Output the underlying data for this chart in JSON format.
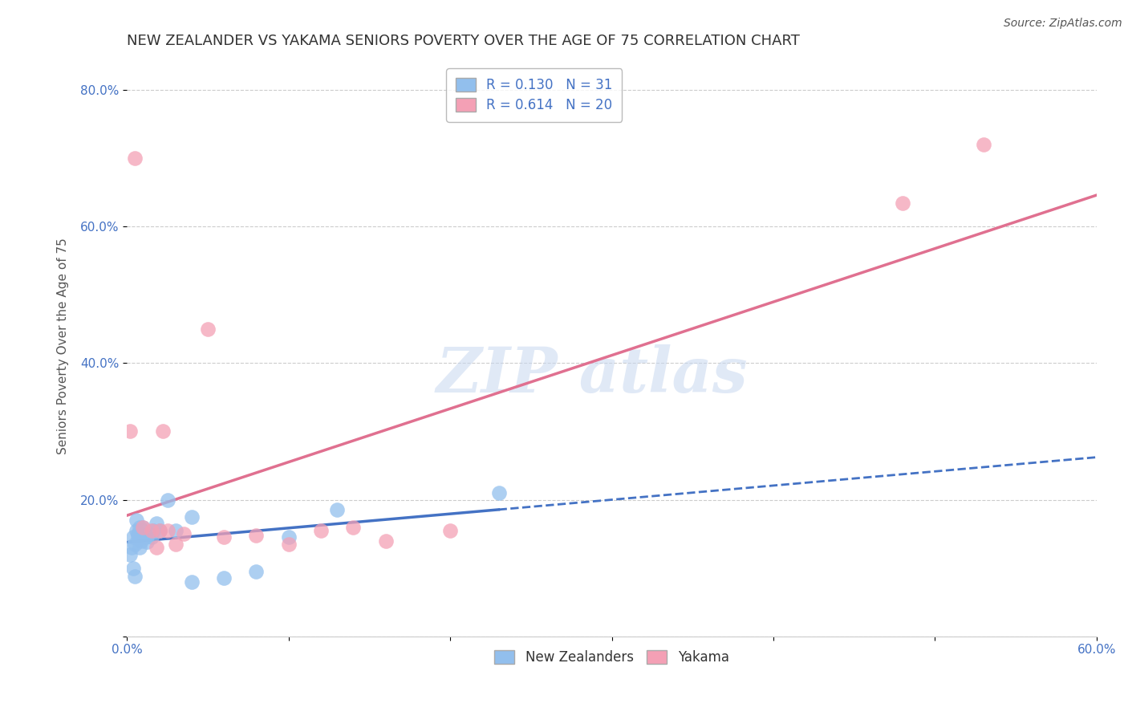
{
  "title": "NEW ZEALANDER VS YAKAMA SENIORS POVERTY OVER THE AGE OF 75 CORRELATION CHART",
  "source": "Source: ZipAtlas.com",
  "ylabel": "Seniors Poverty Over the Age of 75",
  "xlim": [
    0.0,
    0.6
  ],
  "ylim": [
    0.0,
    0.85
  ],
  "xticks": [
    0.0,
    0.1,
    0.2,
    0.3,
    0.4,
    0.5,
    0.6
  ],
  "yticks": [
    0.0,
    0.2,
    0.4,
    0.6,
    0.8
  ],
  "nz_R": 0.13,
  "nz_N": 31,
  "yakama_R": 0.614,
  "yakama_N": 20,
  "nz_color": "#92BFED",
  "yakama_color": "#F4A0B5",
  "nz_line_color": "#4472C4",
  "yakama_line_color": "#E07090",
  "background_color": "#ffffff",
  "grid_color": "#cccccc",
  "nz_legend_label": "New Zealanders",
  "yakama_legend_label": "Yakama",
  "title_fontsize": 13,
  "label_fontsize": 11,
  "tick_fontsize": 11,
  "legend_fontsize": 12,
  "nz_x": [
    0.002,
    0.003,
    0.004,
    0.004,
    0.005,
    0.005,
    0.006,
    0.006,
    0.007,
    0.007,
    0.008,
    0.008,
    0.009,
    0.01,
    0.01,
    0.011,
    0.012,
    0.013,
    0.015,
    0.016,
    0.018,
    0.02,
    0.025,
    0.03,
    0.04,
    0.06,
    0.08,
    0.1,
    0.13,
    0.23,
    0.04
  ],
  "nz_y": [
    0.12,
    0.13,
    0.1,
    0.145,
    0.088,
    0.135,
    0.155,
    0.17,
    0.15,
    0.145,
    0.16,
    0.13,
    0.14,
    0.155,
    0.16,
    0.145,
    0.138,
    0.15,
    0.145,
    0.155,
    0.165,
    0.155,
    0.2,
    0.155,
    0.08,
    0.085,
    0.095,
    0.145,
    0.185,
    0.21,
    0.175
  ],
  "yakama_x": [
    0.002,
    0.005,
    0.01,
    0.015,
    0.018,
    0.02,
    0.022,
    0.025,
    0.03,
    0.035,
    0.05,
    0.06,
    0.08,
    0.1,
    0.12,
    0.14,
    0.16,
    0.2,
    0.48,
    0.53
  ],
  "yakama_y": [
    0.3,
    0.7,
    0.16,
    0.155,
    0.13,
    0.155,
    0.3,
    0.155,
    0.135,
    0.15,
    0.45,
    0.145,
    0.148,
    0.135,
    0.155,
    0.16,
    0.14,
    0.155,
    0.635,
    0.72
  ]
}
